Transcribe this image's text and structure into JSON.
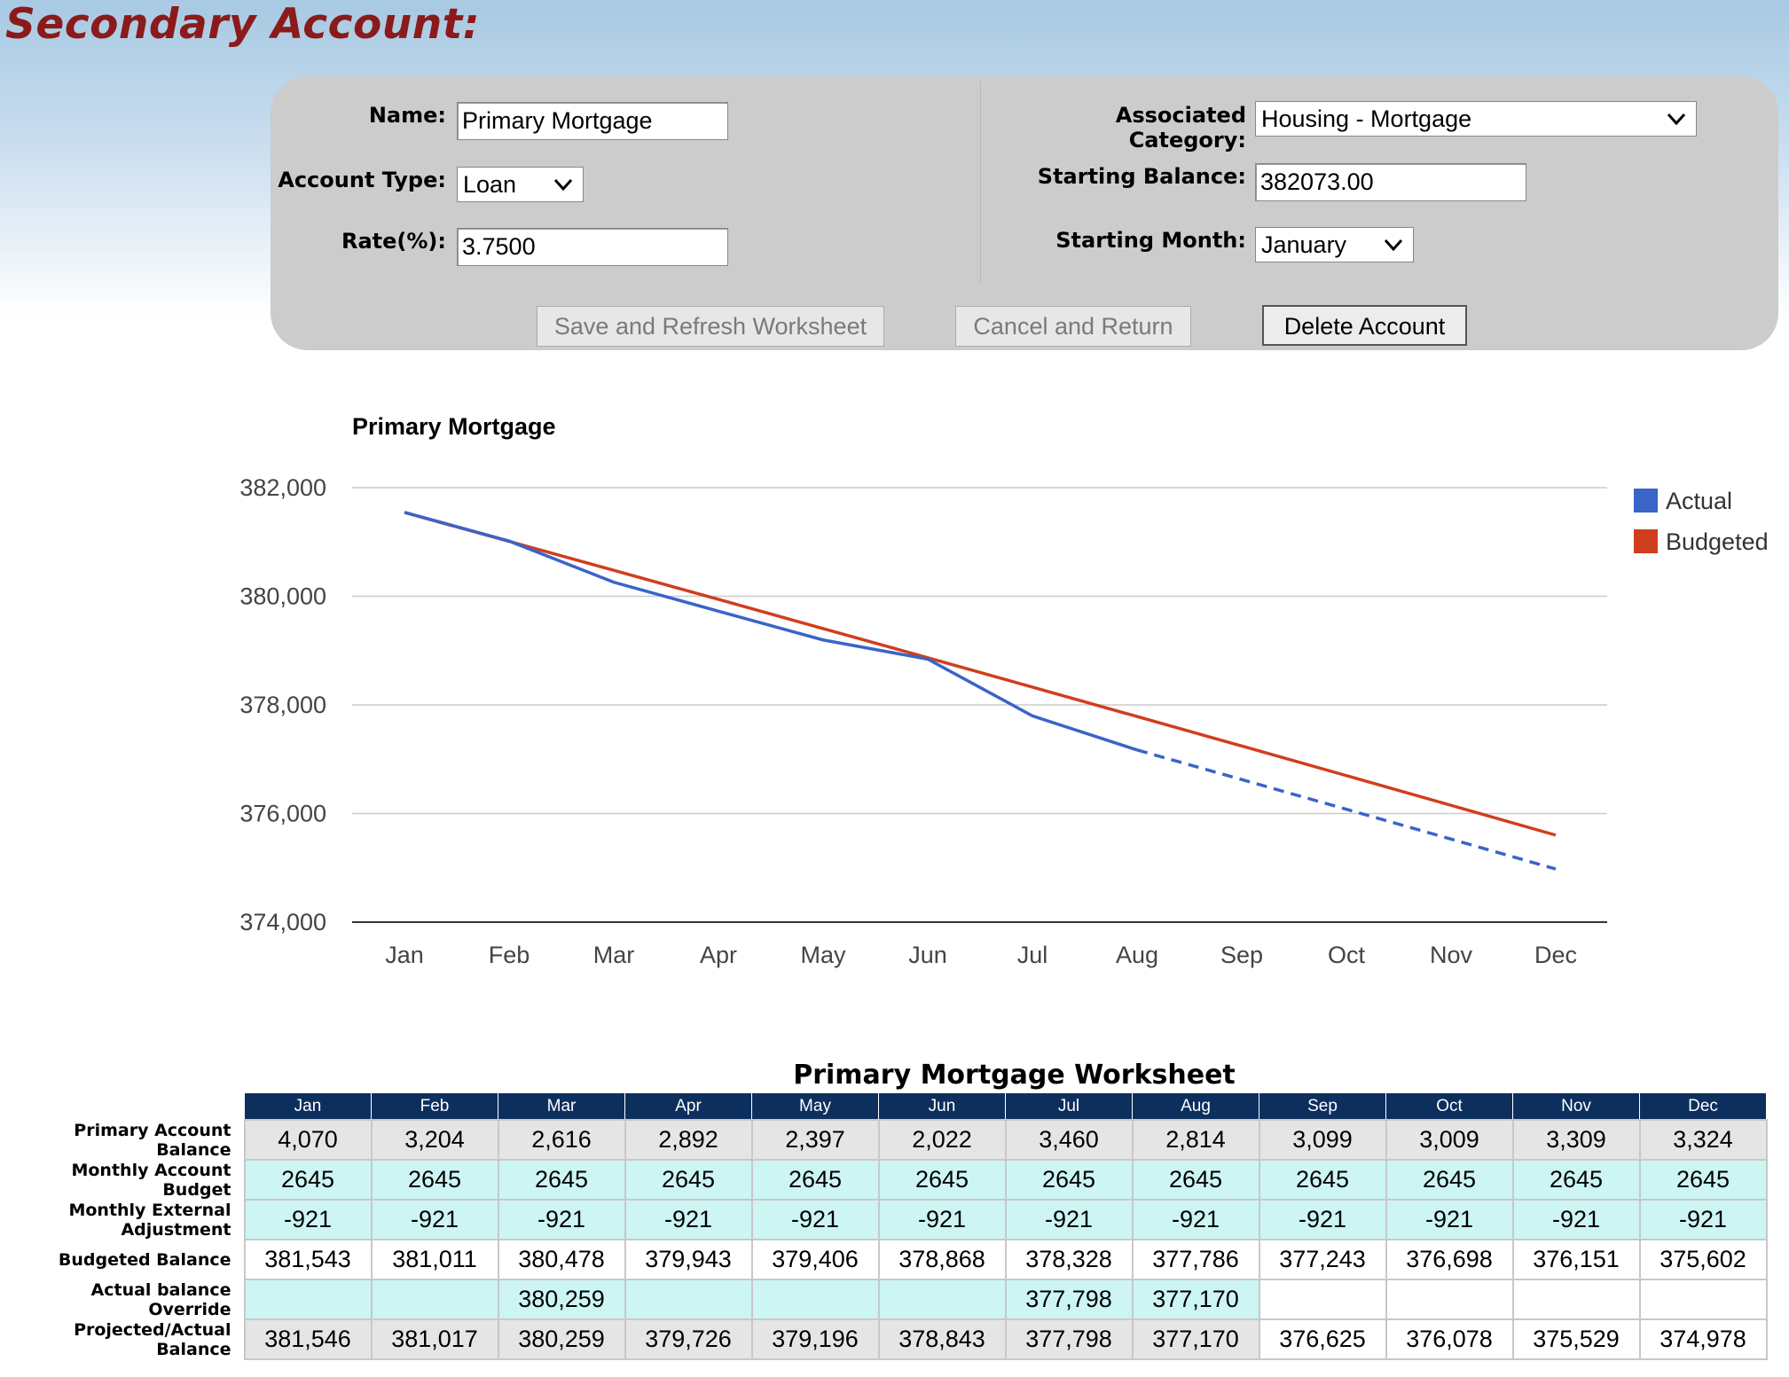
{
  "page": {
    "title": "Secondary Account:"
  },
  "form": {
    "name": {
      "label": "Name:",
      "value": "Primary Mortgage"
    },
    "account_type": {
      "label": "Account Type:",
      "value": "Loan"
    },
    "rate": {
      "label": "Rate(%):",
      "value": "3.7500"
    },
    "associated_category": {
      "label": "Associated Category:",
      "value": "Housing - Mortgage"
    },
    "starting_balance": {
      "label": "Starting Balance:",
      "value": "382073.00"
    },
    "starting_month": {
      "label": "Starting Month:",
      "value": "January"
    },
    "buttons": {
      "save": "Save and Refresh Worksheet",
      "cancel": "Cancel and Return",
      "delete": "Delete Account"
    }
  },
  "icons": {
    "dropdown": "chevron-down-icon"
  },
  "colors": {
    "actual": "#3a64c8",
    "budgeted": "#d13e1d",
    "header": "#0d2f5e",
    "title": "#8b1a1a"
  },
  "chart_data": {
    "type": "line",
    "title": "Primary Mortgage",
    "categories": [
      "Jan",
      "Feb",
      "Mar",
      "Apr",
      "May",
      "Jun",
      "Jul",
      "Aug",
      "Sep",
      "Oct",
      "Nov",
      "Dec"
    ],
    "yticks": [
      "382,000",
      "380,000",
      "378,000",
      "376,000",
      "374,000"
    ],
    "ylim": [
      374000,
      382000
    ],
    "legend_position": "right",
    "grid": true,
    "series": [
      {
        "name": "Actual",
        "values": [
          381546,
          381017,
          380259,
          379726,
          379196,
          378843,
          377798,
          377170,
          376625,
          376078,
          375529,
          374978
        ],
        "dashed_from_index": 7
      },
      {
        "name": "Budgeted",
        "values": [
          381543,
          381011,
          380478,
          379943,
          379406,
          378868,
          378328,
          377786,
          377243,
          376698,
          376151,
          375602
        ]
      }
    ]
  },
  "worksheet": {
    "title": "Primary Mortgage Worksheet",
    "months": [
      "Jan",
      "Feb",
      "Mar",
      "Apr",
      "May",
      "Jun",
      "Jul",
      "Aug",
      "Sep",
      "Oct",
      "Nov",
      "Dec"
    ],
    "rows": [
      {
        "label": "Primary Account Balance",
        "values": [
          "4,070",
          "3,204",
          "2,616",
          "2,892",
          "2,397",
          "2,022",
          "3,460",
          "2,814",
          "3,099",
          "3,009",
          "3,309",
          "3,324"
        ]
      },
      {
        "label": "Monthly Account Budget",
        "values": [
          "2645",
          "2645",
          "2645",
          "2645",
          "2645",
          "2645",
          "2645",
          "2645",
          "2645",
          "2645",
          "2645",
          "2645"
        ]
      },
      {
        "label": "Monthly External Adjustment",
        "values": [
          "-921",
          "-921",
          "-921",
          "-921",
          "-921",
          "-921",
          "-921",
          "-921",
          "-921",
          "-921",
          "-921",
          "-921"
        ]
      },
      {
        "label": "Budgeted Balance",
        "values": [
          "381,543",
          "381,011",
          "380,478",
          "379,943",
          "379,406",
          "378,868",
          "378,328",
          "377,786",
          "377,243",
          "376,698",
          "376,151",
          "375,602"
        ]
      },
      {
        "label": "Actual balance Override",
        "values": [
          "",
          "",
          "380,259",
          "",
          "",
          "",
          "377,798",
          "377,170",
          "",
          "",
          "",
          ""
        ]
      },
      {
        "label": "Projected/Actual Balance",
        "values": [
          "381,546",
          "381,017",
          "380,259",
          "379,726",
          "379,196",
          "378,843",
          "377,798",
          "377,170",
          "376,625",
          "376,078",
          "375,529",
          "374,978"
        ]
      }
    ]
  }
}
